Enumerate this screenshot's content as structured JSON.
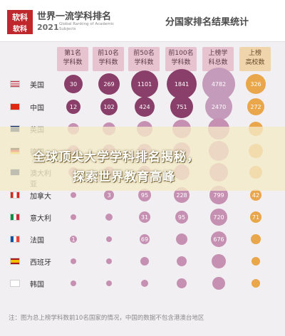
{
  "header": {
    "logo_top": "软科",
    "logo_bottom": "软科",
    "brand_title": "世界一流学科排名",
    "brand_year": "2021",
    "brand_sub": "Global Ranking of Academic Subjects",
    "page_title": "分国家排名结果统计"
  },
  "columns": [
    {
      "label": "第1名\n学科数"
    },
    {
      "label": "前10名\n学科数"
    },
    {
      "label": "前50名\n学科数"
    },
    {
      "label": "前100名\n学科数"
    },
    {
      "label": "上榜学\n科总数"
    },
    {
      "label": "上榜\n高校数"
    }
  ],
  "rows": [
    {
      "country": "美国",
      "flag": "us",
      "values": [
        "30",
        "269",
        "1101",
        "1841",
        "4782",
        "326"
      ]
    },
    {
      "country": "中国",
      "flag": "cn",
      "values": [
        "12",
        "102",
        "424",
        "751",
        "2470",
        "272"
      ]
    },
    {
      "country": "英国",
      "flag": "uk",
      "values": [
        "",
        "",
        "",
        "",
        "",
        ""
      ]
    },
    {
      "country": "德国",
      "flag": "de",
      "values": [
        "",
        "",
        "",
        "",
        "",
        ""
      ]
    },
    {
      "country": "澳大利亚",
      "flag": "au",
      "values": [
        "",
        "",
        "",
        "",
        "",
        ""
      ]
    },
    {
      "country": "加拿大",
      "flag": "ca",
      "values": [
        "",
        "3",
        "95",
        "228",
        "799",
        "42"
      ]
    },
    {
      "country": "意大利",
      "flag": "it",
      "values": [
        "",
        "",
        "31",
        "95",
        "720",
        "71"
      ]
    },
    {
      "country": "法国",
      "flag": "fr",
      "values": [
        "1",
        "",
        "69",
        "",
        "676",
        ""
      ]
    },
    {
      "country": "西班牙",
      "flag": "es",
      "values": [
        "",
        "",
        "",
        "",
        "",
        ""
      ]
    },
    {
      "country": "韩国",
      "flag": "kr",
      "values": [
        "",
        "",
        "",
        "",
        "",
        ""
      ]
    }
  ],
  "overlay": {
    "line1": "全球顶尖大学学科排名揭秘，",
    "line2": "探索世界教育高峰"
  },
  "footnote": "注：图为总上榜学科数前10名国家的情况，中国的数据不包含港澳台地区",
  "colors": {
    "bubble": "#8a3f6a",
    "bubble_light": "#c690b3",
    "bubble_last": "#e9a64b",
    "header_col": "#e7c2cf"
  }
}
